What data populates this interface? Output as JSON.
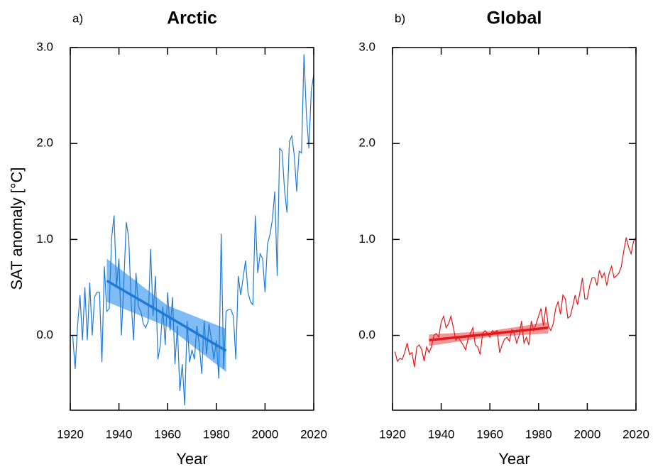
{
  "chart_data": [
    {
      "type": "line",
      "panel_label": "a)",
      "title": "Arctic",
      "xlabel": "Year",
      "ylabel": "SAT anomaly [°C]",
      "x": [
        1921,
        1922,
        1923,
        1924,
        1925,
        1926,
        1927,
        1928,
        1929,
        1930,
        1931,
        1932,
        1933,
        1934,
        1935,
        1936,
        1937,
        1938,
        1939,
        1940,
        1941,
        1942,
        1943,
        1944,
        1945,
        1946,
        1947,
        1948,
        1949,
        1950,
        1951,
        1952,
        1953,
        1954,
        1955,
        1956,
        1957,
        1958,
        1959,
        1960,
        1961,
        1962,
        1963,
        1964,
        1965,
        1966,
        1967,
        1968,
        1969,
        1970,
        1971,
        1972,
        1973,
        1974,
        1975,
        1976,
        1977,
        1978,
        1979,
        1980,
        1981,
        1982,
        1983,
        1984,
        1985,
        1986,
        1987,
        1988,
        1989,
        1990,
        1991,
        1992,
        1993,
        1994,
        1995,
        1996,
        1997,
        1998,
        1999,
        2000,
        2001,
        2002,
        2003,
        2004,
        2005,
        2006,
        2007,
        2008,
        2009,
        2010,
        2011,
        2012,
        2013,
        2014,
        2015,
        2016,
        2017,
        2018,
        2019,
        2020
      ],
      "values": [
        0.0,
        -0.35,
        0.1,
        0.42,
        -0.05,
        0.5,
        -0.05,
        0.55,
        0.0,
        0.4,
        0.45,
        0.45,
        -0.28,
        0.72,
        0.25,
        0.28,
        1.02,
        1.25,
        0.5,
        0.8,
        0.0,
        0.55,
        1.18,
        1.02,
        0.35,
        -0.05,
        0.65,
        0.3,
        0.25,
        0.12,
        0.08,
        0.15,
        0.9,
        0.2,
        0.62,
        -0.25,
        -0.1,
        0.3,
        -0.1,
        0.45,
        0.05,
        0.4,
        -0.3,
        0.1,
        -0.58,
        -0.3,
        -0.73,
        0.15,
        -0.28,
        -0.15,
        -0.25,
        0.1,
        -0.1,
        -0.4,
        0.15,
        -0.2,
        0.12,
        -0.05,
        -0.25,
        -0.05,
        -0.45,
        1.06,
        -0.35,
        0.25,
        0.27,
        0.27,
        0.2,
        -0.25,
        0.62,
        0.42,
        0.6,
        0.78,
        0.45,
        0.35,
        0.32,
        1.25,
        0.65,
        0.85,
        0.8,
        0.45,
        0.95,
        1.05,
        1.2,
        1.5,
        0.62,
        1.95,
        1.92,
        1.52,
        1.28,
        2.02,
        2.08,
        1.88,
        1.5,
        1.92,
        1.9,
        2.93,
        2.3,
        1.95,
        2.55,
        2.72
      ],
      "color": "#1f7ad6",
      "band_color": "#4a9ff0",
      "trend": {
        "x": [
          1935,
          1960,
          1984
        ],
        "values": [
          0.57,
          0.2,
          -0.16
        ],
        "lower": [
          0.35,
          0.09,
          -0.38
        ],
        "upper": [
          0.8,
          0.31,
          0.07
        ]
      },
      "xlim": [
        1920,
        2020
      ],
      "xticks": [
        1920,
        1940,
        1960,
        1980,
        2000,
        2020
      ],
      "ylim": [
        -0.78,
        3.0
      ],
      "yticks": [
        {
          "value": 0,
          "label": "0.0"
        },
        {
          "value": 1,
          "label": "1.0"
        },
        {
          "value": 2,
          "label": "2.0"
        },
        {
          "value": 3,
          "label": "3.0"
        }
      ]
    },
    {
      "type": "line",
      "panel_label": "b)",
      "title": "Global",
      "xlabel": "Year",
      "x": [
        1921,
        1922,
        1923,
        1924,
        1925,
        1926,
        1927,
        1928,
        1929,
        1930,
        1931,
        1932,
        1933,
        1934,
        1935,
        1936,
        1937,
        1938,
        1939,
        1940,
        1941,
        1942,
        1943,
        1944,
        1945,
        1946,
        1947,
        1948,
        1949,
        1950,
        1951,
        1952,
        1953,
        1954,
        1955,
        1956,
        1957,
        1958,
        1959,
        1960,
        1961,
        1962,
        1963,
        1964,
        1965,
        1966,
        1967,
        1968,
        1969,
        1970,
        1971,
        1972,
        1973,
        1974,
        1975,
        1976,
        1977,
        1978,
        1979,
        1980,
        1981,
        1982,
        1983,
        1984,
        1985,
        1986,
        1987,
        1988,
        1989,
        1990,
        1991,
        1992,
        1993,
        1994,
        1995,
        1996,
        1997,
        1998,
        1999,
        2000,
        2001,
        2002,
        2003,
        2004,
        2005,
        2006,
        2007,
        2008,
        2009,
        2010,
        2011,
        2012,
        2013,
        2014,
        2015,
        2016,
        2017,
        2018,
        2019,
        2020
      ],
      "values": [
        -0.17,
        -0.27,
        -0.24,
        -0.25,
        -0.18,
        -0.08,
        -0.2,
        -0.18,
        -0.33,
        -0.12,
        -0.1,
        -0.15,
        -0.27,
        -0.12,
        -0.18,
        -0.12,
        0.0,
        0.02,
        -0.02,
        0.14,
        0.2,
        0.08,
        0.12,
        0.2,
        0.08,
        -0.05,
        -0.02,
        -0.06,
        -0.1,
        -0.15,
        -0.04,
        0.02,
        0.08,
        -0.1,
        -0.12,
        -0.2,
        0.02,
        0.05,
        0.02,
        -0.02,
        0.05,
        0.03,
        0.05,
        -0.18,
        -0.1,
        -0.04,
        -0.02,
        -0.06,
        0.06,
        0.02,
        -0.08,
        0.0,
        0.15,
        -0.08,
        -0.02,
        -0.1,
        0.15,
        0.05,
        0.12,
        0.2,
        0.28,
        0.1,
        0.3,
        0.1,
        0.05,
        0.12,
        0.28,
        0.35,
        0.22,
        0.42,
        0.38,
        0.18,
        0.2,
        0.3,
        0.42,
        0.32,
        0.45,
        0.6,
        0.38,
        0.38,
        0.52,
        0.6,
        0.6,
        0.52,
        0.68,
        0.6,
        0.65,
        0.52,
        0.65,
        0.72,
        0.6,
        0.62,
        0.65,
        0.72,
        0.88,
        1.02,
        0.92,
        0.85,
        0.98,
        1.02
      ],
      "color": "#e0191e",
      "band_color": "#f06a6a",
      "trend": {
        "x": [
          1935,
          1960,
          1984
        ],
        "values": [
          -0.05,
          0.015,
          0.08
        ],
        "lower": [
          -0.11,
          -0.015,
          0.02
        ],
        "upper": [
          0.01,
          0.045,
          0.14
        ]
      },
      "xlim": [
        1920,
        2020
      ],
      "xticks": [
        1920,
        1940,
        1960,
        1980,
        2000,
        2020
      ],
      "ylim": [
        -0.78,
        3.0
      ],
      "yticks": [
        {
          "value": 0,
          "label": "0.0"
        },
        {
          "value": 1,
          "label": "1.0"
        },
        {
          "value": 2,
          "label": "2.0"
        },
        {
          "value": 3,
          "label": "3.0"
        }
      ]
    }
  ]
}
